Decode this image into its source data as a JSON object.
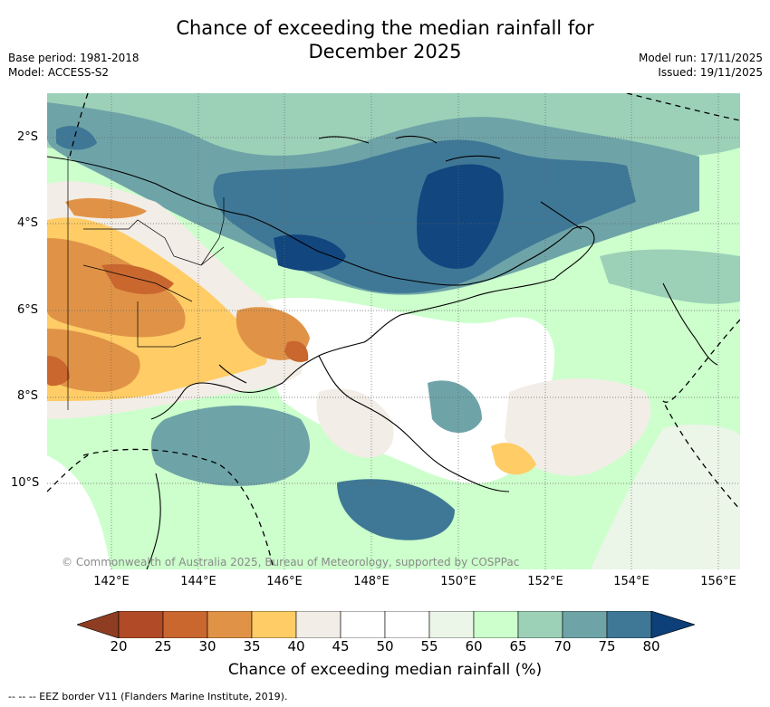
{
  "header": {
    "title_line1": "Chance of exceeding the median rainfall for",
    "title_line2": "December 2025",
    "base_period": "Base period: 1981-2018",
    "model": "Model: ACCESS-S2",
    "model_run": "Model run: 17/11/2025",
    "issued": "Issued: 19/11/2025"
  },
  "map": {
    "lat_labels": [
      "2°S",
      "4°S",
      "6°S",
      "8°S",
      "10°S"
    ],
    "lon_labels": [
      "142°E",
      "144°E",
      "146°E",
      "148°E",
      "150°E",
      "152°E",
      "154°E",
      "156°E"
    ],
    "copyright": "© Commonwealth of Australia 2025, Bureau of Meteorology, supported by COSPPac"
  },
  "colorbar": {
    "ticks": [
      "20",
      "25",
      "30",
      "35",
      "40",
      "45",
      "50",
      "55",
      "60",
      "65",
      "70",
      "75",
      "80"
    ],
    "title": "Chance of exceeding median rainfall (%)",
    "colors": [
      "#b04a27",
      "#c9672f",
      "#e09347",
      "#ffcc66",
      "#f2ede6",
      "#ffffff",
      "#ffffff",
      "#ebf5e8",
      "#ccffcc",
      "#9cd1b8",
      "#6ea4a8",
      "#3f7896",
      "#11467f"
    ]
  },
  "footer": {
    "eez_note": "--  --  -- EEZ border V11 (Flanders Marine Institute, 2019)."
  }
}
